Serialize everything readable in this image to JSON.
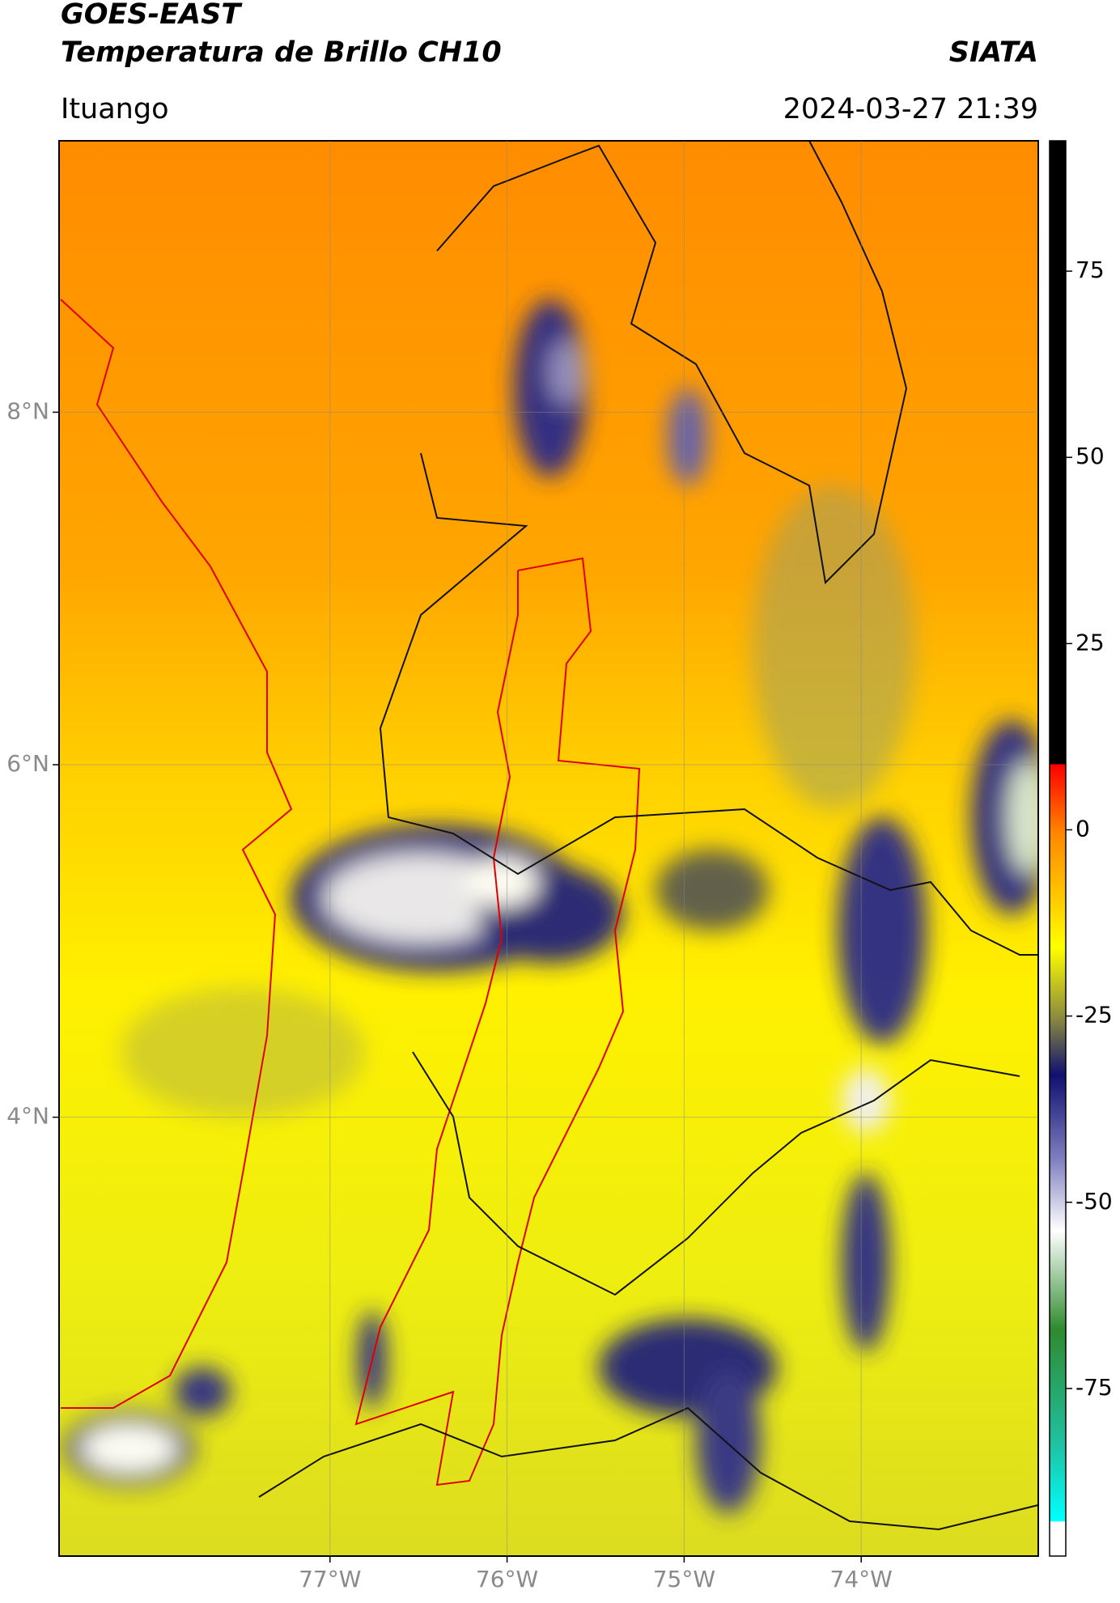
{
  "header": {
    "title": "GOES-EAST",
    "subtitle": "Temperatura de Brillo CH10",
    "brand": "SIATA",
    "location": "Ituango",
    "timestamp": "2024-03-27 21:39"
  },
  "map": {
    "xlim": [
      -78.53,
      -73.0
    ],
    "ylim": [
      1.51,
      9.54
    ],
    "xticks": [
      {
        "value": -77,
        "label": "77°W"
      },
      {
        "value": -76,
        "label": "76°W"
      },
      {
        "value": -75,
        "label": "75°W"
      },
      {
        "value": -74,
        "label": "74°W"
      }
    ],
    "yticks": [
      {
        "value": 8,
        "label": "8°N"
      },
      {
        "value": 6,
        "label": "6°N"
      },
      {
        "value": 4,
        "label": "4°N"
      }
    ],
    "grid": true
  },
  "colorbar": {
    "lim": [
      -97.5,
      92.5
    ],
    "ticks": [
      75,
      50,
      25,
      0,
      -25,
      -50,
      -75
    ]
  }
}
